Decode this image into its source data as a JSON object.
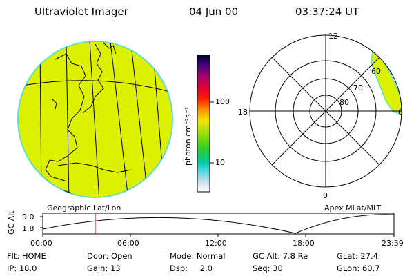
{
  "header": {
    "title": "Ultraviolet Imager",
    "date": "04 Jun 00",
    "time": "03:37:24 UT"
  },
  "colorbar": {
    "label": "photon cm⁻²s⁻¹",
    "ticks": [
      "100",
      "10"
    ]
  },
  "panels": {
    "left_label": "Geographic Lat/Lon",
    "right_label": "Apex MLat/MLT"
  },
  "polar": {
    "mlt_labels": {
      "top": "12",
      "left": "18",
      "right": "6",
      "bottom": "0"
    },
    "lat_labels": [
      "60",
      "70",
      "80"
    ]
  },
  "altitude": {
    "axis_label": "GC Alt",
    "y_ticks": [
      "9.0",
      "1.8"
    ],
    "x_ticks": [
      "00:00",
      "06:00",
      "12:00",
      "18:00",
      "23:59"
    ],
    "marker_color": "#dd0000"
  },
  "info": {
    "row1": [
      {
        "key": "Flt:",
        "value": "HOME"
      },
      {
        "key": "Door:",
        "value": "Open"
      },
      {
        "key": "Mode:",
        "value": "Normal"
      },
      {
        "key": "GC Alt:",
        "value": "7.8 Re"
      },
      {
        "key": "GLat:",
        "value": "27.4"
      }
    ],
    "row2": [
      {
        "key": "IP:",
        "value": "18.0"
      },
      {
        "key": "Gain:",
        "value": "13"
      },
      {
        "key": "Dsp:",
        "value": "2.0"
      },
      {
        "key": "Seq:",
        "value": "30"
      },
      {
        "key": "GLon:",
        "value": "60.7"
      }
    ]
  },
  "colors": {
    "fill": "#dcf000",
    "fill_edge": "#5ee0c8"
  }
}
